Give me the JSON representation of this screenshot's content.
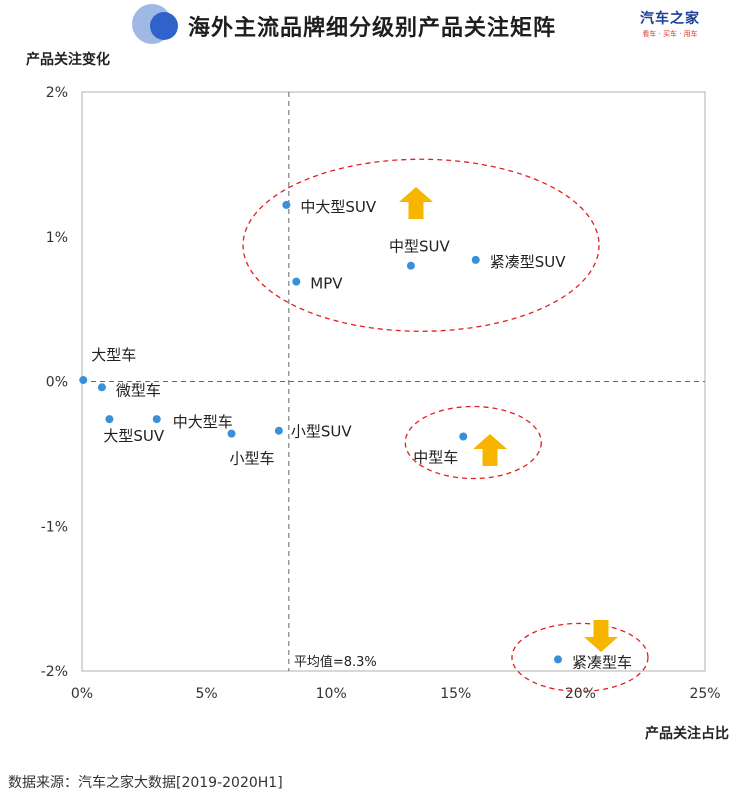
{
  "header": {
    "title": "海外主流品牌细分级别产品关注矩阵",
    "brand_name": "汽车之家",
    "brand_tagline": "看车 · 买车 · 用车",
    "logo_icon": "circles-logo-icon"
  },
  "footer": {
    "source": "数据来源：汽车之家大数据[2019-2020H1]"
  },
  "colors": {
    "point": "#3a8fd9",
    "ellipse": "#e02020",
    "arrow": "#f7b500",
    "axis": "#b0b0b0",
    "avg_line": "#666666"
  },
  "chart_data": {
    "type": "scatter",
    "title": "海外主流品牌细分级别产品关注矩阵",
    "xlabel": "产品关注占比",
    "ylabel": "产品关注变化",
    "xlim": [
      0,
      25
    ],
    "ylim": [
      -2,
      2
    ],
    "x_ticks": [
      0,
      5,
      10,
      15,
      20,
      25
    ],
    "x_tick_labels": [
      "0%",
      "5%",
      "10%",
      "15%",
      "20%",
      "25%"
    ],
    "y_ticks": [
      2,
      1,
      0,
      -1,
      -2
    ],
    "y_tick_labels": [
      "2%",
      "1%",
      "0%",
      "-1%",
      "-2%"
    ],
    "grid": false,
    "reference_lines": [
      {
        "axis": "x",
        "value": 8.3,
        "label": "平均值=8.3%"
      },
      {
        "axis": "y",
        "value": 0,
        "label": ""
      }
    ],
    "points": [
      {
        "label": "中大型SUV",
        "x": 8.2,
        "y": 1.22
      },
      {
        "label": "中型SUV",
        "x": 13.2,
        "y": 0.8
      },
      {
        "label": "紧凑型SUV",
        "x": 15.8,
        "y": 0.84
      },
      {
        "label": "MPV",
        "x": 8.6,
        "y": 0.69
      },
      {
        "label": "大型车",
        "x": 0.05,
        "y": 0.01
      },
      {
        "label": "微型车",
        "x": 0.8,
        "y": -0.04
      },
      {
        "label": "大型SUV",
        "x": 1.1,
        "y": -0.26
      },
      {
        "label": "中大型车",
        "x": 3.0,
        "y": -0.26
      },
      {
        "label": "小型车",
        "x": 6.0,
        "y": -0.36
      },
      {
        "label": "小型SUV",
        "x": 7.9,
        "y": -0.34
      },
      {
        "label": "中型车",
        "x": 15.3,
        "y": -0.38
      },
      {
        "label": "紧凑型车",
        "x": 19.1,
        "y": -1.92
      }
    ],
    "highlight_groups": [
      {
        "members": [
          "中大型SUV",
          "中型SUV",
          "紧凑型SUV",
          "MPV"
        ],
        "trend": "up"
      },
      {
        "members": [
          "中型车"
        ],
        "trend": "up"
      },
      {
        "members": [
          "紧凑型车"
        ],
        "trend": "down"
      }
    ]
  }
}
